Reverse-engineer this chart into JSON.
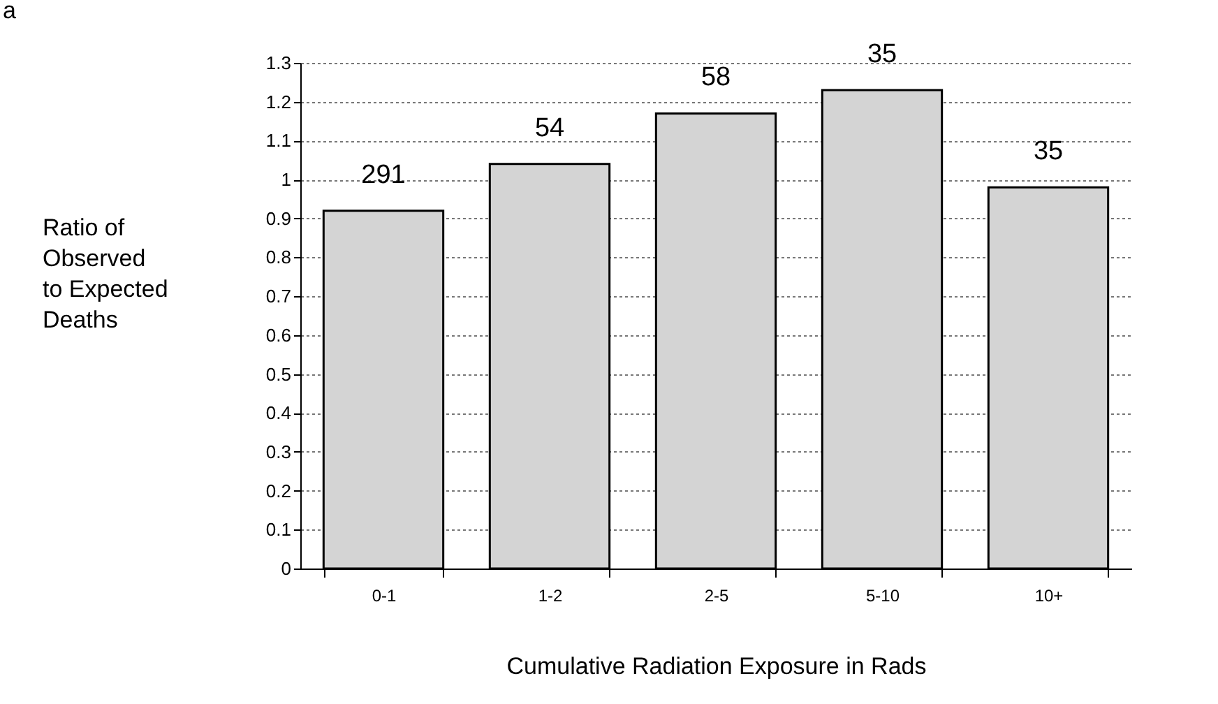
{
  "chart_data": {
    "type": "bar",
    "xlabel": "Cumulative Radiation Exposure in Rads",
    "ylabel": "Ratio of\nObserved\nto Expected\nDeaths",
    "annotations": [
      "a",
      {
        "text": "291",
        "x": "0-1",
        "y": 0.92
      },
      {
        "text": "54",
        "x": "1-2",
        "y": 1.04
      },
      {
        "text": "58",
        "x": "2-5",
        "y": 1.17
      },
      {
        "text": "35",
        "x": "5-10",
        "y": 1.23
      },
      {
        "text": "35",
        "x": "10+",
        "y": 0.98
      }
    ],
    "categories": [
      "0-1",
      "1-2",
      "2-5",
      "5-10",
      "10+"
    ],
    "values": [
      0.92,
      1.04,
      1.17,
      1.23,
      0.98
    ],
    "color": "#d4d4d4",
    "ylim": [
      0,
      1.3
    ],
    "yticks": [
      0,
      0.1,
      0.2,
      0.3,
      0.4,
      0.5,
      0.6,
      0.7,
      0.8,
      0.9,
      1,
      1.1,
      1.2,
      1.3
    ],
    "grid": "y"
  }
}
